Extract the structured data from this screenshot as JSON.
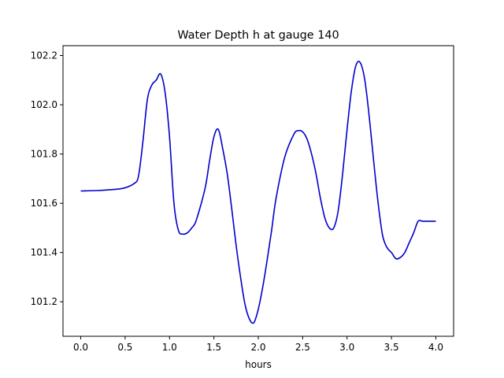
{
  "chart_data": {
    "type": "line",
    "title": "Water Depth h at gauge 140",
    "xlabel": "hours",
    "ylabel": "",
    "xlim": [
      -0.2,
      4.2
    ],
    "ylim": [
      101.06,
      102.24
    ],
    "xticks": [
      0.0,
      0.5,
      1.0,
      1.5,
      2.0,
      2.5,
      3.0,
      3.5,
      4.0
    ],
    "xtick_labels": [
      "0.0",
      "0.5",
      "1.0",
      "1.5",
      "2.0",
      "2.5",
      "3.0",
      "3.5",
      "4.0"
    ],
    "yticks": [
      101.2,
      101.4,
      101.6,
      101.8,
      102.0,
      102.2
    ],
    "ytick_labels": [
      "101.2",
      "101.4",
      "101.6",
      "101.8",
      "102.0",
      "102.2"
    ],
    "grid": false,
    "series": [
      {
        "color": "#0000cc",
        "x": [
          0.0,
          0.2,
          0.4,
          0.5,
          0.6,
          0.65,
          0.7,
          0.75,
          0.8,
          0.85,
          0.9,
          0.95,
          1.0,
          1.05,
          1.1,
          1.15,
          1.2,
          1.25,
          1.3,
          1.4,
          1.45,
          1.5,
          1.55,
          1.6,
          1.65,
          1.7,
          1.75,
          1.8,
          1.85,
          1.9,
          1.95,
          2.0,
          2.05,
          2.1,
          2.15,
          2.2,
          2.3,
          2.4,
          2.45,
          2.5,
          2.55,
          2.6,
          2.65,
          2.7,
          2.75,
          2.8,
          2.85,
          2.9,
          2.95,
          3.0,
          3.05,
          3.1,
          3.15,
          3.2,
          3.25,
          3.3,
          3.35,
          3.4,
          3.45,
          3.5,
          3.55,
          3.6,
          3.65,
          3.7,
          3.75,
          3.8,
          3.85,
          3.9,
          3.95,
          4.0
        ],
        "y": [
          101.65,
          101.652,
          101.657,
          101.663,
          101.68,
          101.71,
          101.85,
          102.02,
          102.08,
          102.1,
          102.125,
          102.05,
          101.87,
          101.6,
          101.49,
          101.475,
          101.48,
          101.5,
          101.53,
          101.66,
          101.77,
          101.87,
          101.9,
          101.82,
          101.72,
          101.58,
          101.43,
          101.3,
          101.19,
          101.13,
          101.115,
          101.17,
          101.26,
          101.37,
          101.49,
          101.62,
          101.79,
          101.88,
          101.895,
          101.89,
          101.86,
          101.8,
          101.72,
          101.62,
          101.54,
          101.5,
          101.5,
          101.57,
          101.72,
          101.9,
          102.06,
          102.16,
          102.17,
          102.1,
          101.95,
          101.77,
          101.6,
          101.47,
          101.42,
          101.4,
          101.375,
          101.38,
          101.4,
          101.44,
          101.48,
          101.527,
          101.527,
          101.527,
          101.527,
          101.527
        ]
      }
    ]
  }
}
